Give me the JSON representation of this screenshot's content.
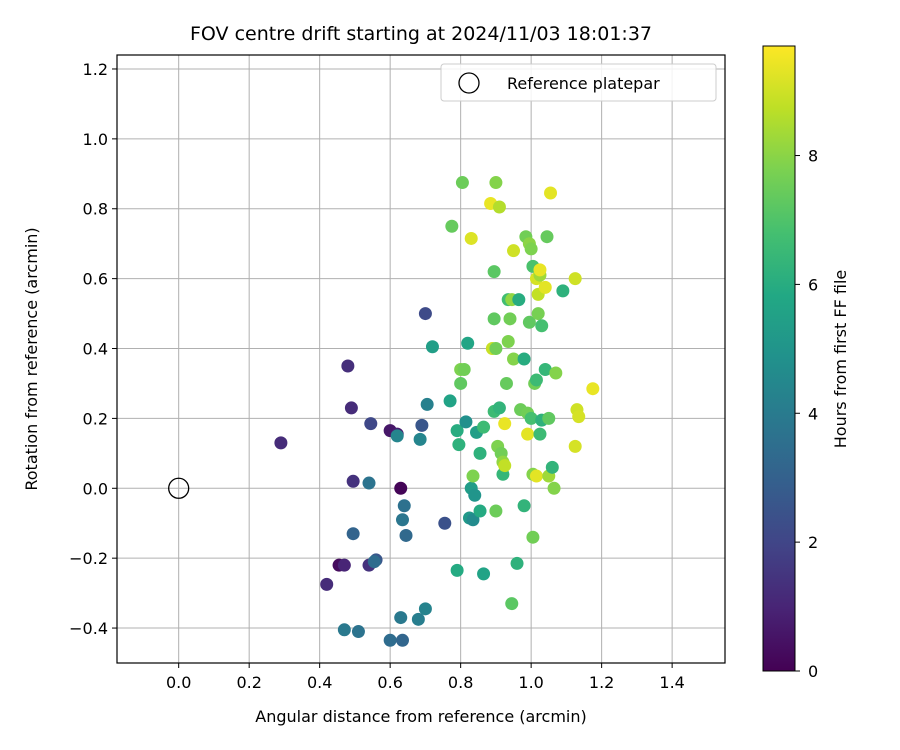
{
  "chart_data": {
    "type": "scatter",
    "title": "FOV centre drift starting at 2024/11/03 18:01:37",
    "xlabel": "Angular distance from reference (arcmin)",
    "ylabel": "Rotation from reference (arcmin)",
    "xlim": [
      -0.175,
      1.55
    ],
    "ylim": [
      -0.5,
      1.24
    ],
    "xticks": [
      "0.0",
      "0.2",
      "0.4",
      "0.6",
      "0.8",
      "1.0",
      "1.2",
      "1.4"
    ],
    "yticks": [
      "−0.4",
      "−0.2",
      "0.0",
      "0.2",
      "0.4",
      "0.6",
      "0.8",
      "1.0",
      "1.2"
    ],
    "grid": true,
    "legend": {
      "position": "top-right",
      "entries": [
        "Reference platepar"
      ]
    },
    "reference_point": {
      "x": 0.0,
      "y": 0.0
    },
    "colorbar": {
      "label": "Hours from first FF file",
      "range": [
        0,
        9.7
      ],
      "ticks": [
        "0",
        "2",
        "4",
        "6",
        "8"
      ],
      "colormap": "viridis"
    },
    "points": [
      {
        "x": 0.29,
        "y": 0.13,
        "h": 1.2
      },
      {
        "x": 0.42,
        "y": -0.275,
        "h": 1.2
      },
      {
        "x": 0.455,
        "y": -0.22,
        "h": 0.3
      },
      {
        "x": 0.47,
        "y": -0.22,
        "h": 1.0
      },
      {
        "x": 0.48,
        "y": 0.35,
        "h": 1.3
      },
      {
        "x": 0.49,
        "y": 0.23,
        "h": 1.2
      },
      {
        "x": 0.495,
        "y": 0.02,
        "h": 1.4
      },
      {
        "x": 0.495,
        "y": -0.13,
        "h": 3.1
      },
      {
        "x": 0.54,
        "y": -0.22,
        "h": 1.4
      },
      {
        "x": 0.545,
        "y": 0.185,
        "h": 2.1
      },
      {
        "x": 0.56,
        "y": -0.205,
        "h": 2.6
      },
      {
        "x": 0.54,
        "y": 0.015,
        "h": 3.7
      },
      {
        "x": 0.555,
        "y": -0.21,
        "h": 3.4
      },
      {
        "x": 0.6,
        "y": 0.165,
        "h": 0.6
      },
      {
        "x": 0.62,
        "y": 0.155,
        "h": 0.8
      },
      {
        "x": 0.62,
        "y": 0.15,
        "h": 4.4
      },
      {
        "x": 0.63,
        "y": 0.0,
        "h": 0.1
      },
      {
        "x": 0.64,
        "y": -0.05,
        "h": 3.6
      },
      {
        "x": 0.635,
        "y": -0.09,
        "h": 3.8
      },
      {
        "x": 0.645,
        "y": -0.135,
        "h": 3.3
      },
      {
        "x": 0.63,
        "y": -0.37,
        "h": 3.9
      },
      {
        "x": 0.6,
        "y": -0.435,
        "h": 3.4
      },
      {
        "x": 0.635,
        "y": -0.435,
        "h": 3.2
      },
      {
        "x": 0.47,
        "y": -0.405,
        "h": 3.9
      },
      {
        "x": 0.51,
        "y": -0.41,
        "h": 3.7
      },
      {
        "x": 0.68,
        "y": -0.375,
        "h": 4.1
      },
      {
        "x": 0.7,
        "y": -0.345,
        "h": 4.3
      },
      {
        "x": 0.685,
        "y": 0.14,
        "h": 4.4
      },
      {
        "x": 0.69,
        "y": 0.18,
        "h": 2.6
      },
      {
        "x": 0.705,
        "y": 0.24,
        "h": 4.2
      },
      {
        "x": 0.7,
        "y": 0.5,
        "h": 2.2
      },
      {
        "x": 0.72,
        "y": 0.405,
        "h": 5.4
      },
      {
        "x": 0.755,
        "y": -0.1,
        "h": 2.4
      },
      {
        "x": 0.77,
        "y": 0.25,
        "h": 5.6
      },
      {
        "x": 0.79,
        "y": 0.165,
        "h": 6.0
      },
      {
        "x": 0.79,
        "y": -0.235,
        "h": 5.9
      },
      {
        "x": 0.795,
        "y": 0.125,
        "h": 6.2
      },
      {
        "x": 0.8,
        "y": 0.3,
        "h": 7.3
      },
      {
        "x": 0.815,
        "y": 0.19,
        "h": 4.8
      },
      {
        "x": 0.82,
        "y": 0.415,
        "h": 5.7
      },
      {
        "x": 0.825,
        "y": -0.085,
        "h": 5.2
      },
      {
        "x": 0.83,
        "y": 0.0,
        "h": 5.3
      },
      {
        "x": 0.835,
        "y": -0.09,
        "h": 4.6
      },
      {
        "x": 0.84,
        "y": -0.02,
        "h": 5.0
      },
      {
        "x": 0.845,
        "y": 0.16,
        "h": 5.4
      },
      {
        "x": 0.855,
        "y": 0.1,
        "h": 6.2
      },
      {
        "x": 0.835,
        "y": 0.035,
        "h": 7.8
      },
      {
        "x": 0.855,
        "y": -0.065,
        "h": 5.9
      },
      {
        "x": 0.865,
        "y": 0.175,
        "h": 6.6
      },
      {
        "x": 0.865,
        "y": -0.245,
        "h": 5.6
      },
      {
        "x": 0.805,
        "y": 0.875,
        "h": 7.5
      },
      {
        "x": 0.8,
        "y": 0.34,
        "h": 7.8
      },
      {
        "x": 0.81,
        "y": 0.34,
        "h": 7.6
      },
      {
        "x": 0.775,
        "y": 0.75,
        "h": 7.4
      },
      {
        "x": 0.83,
        "y": 0.715,
        "h": 9.2
      },
      {
        "x": 0.885,
        "y": 0.815,
        "h": 9.4
      },
      {
        "x": 0.9,
        "y": 0.875,
        "h": 7.9
      },
      {
        "x": 0.91,
        "y": 0.805,
        "h": 8.6
      },
      {
        "x": 0.895,
        "y": 0.62,
        "h": 7.2
      },
      {
        "x": 0.89,
        "y": 0.4,
        "h": 8.9
      },
      {
        "x": 0.895,
        "y": 0.485,
        "h": 7.3
      },
      {
        "x": 0.9,
        "y": 0.4,
        "h": 7.6
      },
      {
        "x": 0.895,
        "y": 0.22,
        "h": 6.6
      },
      {
        "x": 0.91,
        "y": 0.23,
        "h": 6.3
      },
      {
        "x": 0.9,
        "y": -0.065,
        "h": 7.5
      },
      {
        "x": 0.905,
        "y": 0.12,
        "h": 7.8
      },
      {
        "x": 0.915,
        "y": 0.1,
        "h": 7.6
      },
      {
        "x": 0.92,
        "y": 0.075,
        "h": 8.1
      },
      {
        "x": 0.92,
        "y": 0.04,
        "h": 6.4
      },
      {
        "x": 0.925,
        "y": 0.065,
        "h": 8.8
      },
      {
        "x": 0.925,
        "y": 0.185,
        "h": 9.4
      },
      {
        "x": 0.93,
        "y": 0.3,
        "h": 7.4
      },
      {
        "x": 0.935,
        "y": 0.54,
        "h": 6.7
      },
      {
        "x": 0.935,
        "y": 0.42,
        "h": 7.8
      },
      {
        "x": 0.945,
        "y": 0.54,
        "h": 8.1
      },
      {
        "x": 0.94,
        "y": 0.485,
        "h": 7.6
      },
      {
        "x": 0.95,
        "y": 0.37,
        "h": 7.9
      },
      {
        "x": 0.945,
        "y": -0.33,
        "h": 7.2
      },
      {
        "x": 0.95,
        "y": 0.68,
        "h": 9.0
      },
      {
        "x": 0.96,
        "y": -0.215,
        "h": 6.2
      },
      {
        "x": 0.965,
        "y": 0.54,
        "h": 6.0
      },
      {
        "x": 0.97,
        "y": 0.225,
        "h": 7.5
      },
      {
        "x": 0.98,
        "y": 0.37,
        "h": 6.0
      },
      {
        "x": 0.98,
        "y": -0.05,
        "h": 6.3
      },
      {
        "x": 0.985,
        "y": 0.72,
        "h": 7.6
      },
      {
        "x": 0.99,
        "y": 0.155,
        "h": 9.3
      },
      {
        "x": 0.99,
        "y": 0.215,
        "h": 7.6
      },
      {
        "x": 0.995,
        "y": 0.7,
        "h": 8.0
      },
      {
        "x": 0.995,
        "y": 0.475,
        "h": 7.3
      },
      {
        "x": 1.0,
        "y": 0.685,
        "h": 7.8
      },
      {
        "x": 1.0,
        "y": 0.2,
        "h": 6.8
      },
      {
        "x": 1.005,
        "y": -0.14,
        "h": 7.6
      },
      {
        "x": 1.005,
        "y": 0.635,
        "h": 6.9
      },
      {
        "x": 1.01,
        "y": 0.3,
        "h": 7.6
      },
      {
        "x": 1.015,
        "y": 0.31,
        "h": 6.6
      },
      {
        "x": 1.005,
        "y": 0.04,
        "h": 7.9
      },
      {
        "x": 1.015,
        "y": 0.035,
        "h": 9.3
      },
      {
        "x": 1.015,
        "y": 0.6,
        "h": 9.1
      },
      {
        "x": 1.02,
        "y": 0.555,
        "h": 8.8
      },
      {
        "x": 1.02,
        "y": 0.5,
        "h": 7.7
      },
      {
        "x": 1.025,
        "y": 0.61,
        "h": 8.3
      },
      {
        "x": 1.025,
        "y": 0.155,
        "h": 6.6
      },
      {
        "x": 1.025,
        "y": 0.625,
        "h": 9.4
      },
      {
        "x": 1.03,
        "y": 0.465,
        "h": 6.8
      },
      {
        "x": 1.03,
        "y": 0.195,
        "h": 6.2
      },
      {
        "x": 1.04,
        "y": 0.575,
        "h": 9.3
      },
      {
        "x": 1.04,
        "y": 0.34,
        "h": 6.4
      },
      {
        "x": 1.045,
        "y": 0.72,
        "h": 7.4
      },
      {
        "x": 1.05,
        "y": 0.2,
        "h": 7.3
      },
      {
        "x": 1.05,
        "y": 0.035,
        "h": 8.3
      },
      {
        "x": 1.055,
        "y": 0.845,
        "h": 9.3
      },
      {
        "x": 1.06,
        "y": 0.06,
        "h": 6.3
      },
      {
        "x": 1.065,
        "y": 0.0,
        "h": 7.9
      },
      {
        "x": 1.07,
        "y": 0.33,
        "h": 7.9
      },
      {
        "x": 1.09,
        "y": 0.565,
        "h": 6.2
      },
      {
        "x": 1.125,
        "y": 0.12,
        "h": 9.1
      },
      {
        "x": 1.125,
        "y": 0.6,
        "h": 9.0
      },
      {
        "x": 1.13,
        "y": 0.225,
        "h": 9.0
      },
      {
        "x": 1.135,
        "y": 0.205,
        "h": 9.1
      },
      {
        "x": 1.175,
        "y": 0.285,
        "h": 9.4
      }
    ]
  }
}
